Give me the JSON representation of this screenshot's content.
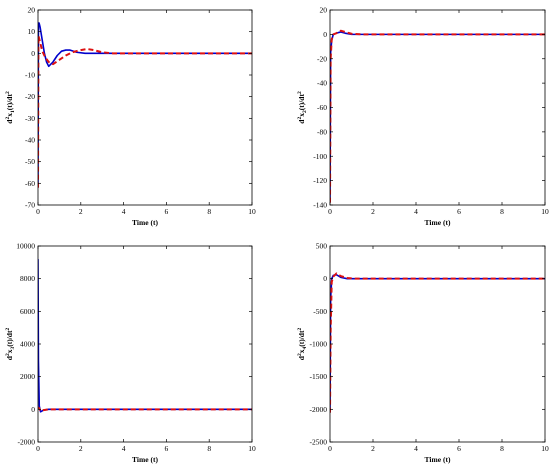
{
  "chart_data": [
    {
      "type": "line",
      "xlabel": "Time (t)",
      "ylabel_parts": {
        "main": "d",
        "sup1": "2",
        "mid": "x",
        "sub": "1",
        "end": "(t)/dt",
        "sup2": "2"
      },
      "xlim": [
        0,
        10
      ],
      "ylim": [
        -70,
        20
      ],
      "xticks": [
        0,
        2,
        4,
        6,
        8,
        10
      ],
      "yticks": [
        20,
        10,
        0,
        -10,
        -20,
        -30,
        -40,
        -50,
        -60,
        -70
      ],
      "grid": false,
      "series": [
        {
          "style": "solid",
          "color": "#0000cc",
          "x": [
            0,
            0.02,
            0.05,
            0.1,
            0.2,
            0.3,
            0.4,
            0.5,
            0.7,
            0.9,
            1.1,
            1.3,
            1.5,
            1.8,
            2.2,
            2.6,
            3,
            4,
            5,
            6,
            7,
            8,
            9,
            10
          ],
          "y": [
            -62,
            14,
            14,
            12,
            6,
            0,
            -4,
            -6,
            -4,
            -1,
            1,
            1.5,
            1.5,
            0.5,
            0,
            0,
            0,
            0,
            0,
            0,
            0,
            0,
            0,
            0
          ]
        },
        {
          "style": "dashed",
          "color": "#dd1111",
          "x": [
            0,
            0.02,
            0.05,
            0.1,
            0.2,
            0.35,
            0.5,
            0.7,
            1,
            1.3,
            1.6,
            2,
            2.3,
            2.6,
            3,
            3.5,
            4,
            5,
            6,
            7,
            8,
            9,
            10
          ],
          "y": [
            -62,
            8,
            7,
            5,
            1,
            -2,
            -4,
            -5,
            -3,
            -1,
            0.5,
            1.5,
            2,
            1.5,
            0.5,
            0,
            0,
            0,
            0,
            0,
            0,
            0,
            0
          ]
        }
      ]
    },
    {
      "type": "line",
      "xlabel": "Time (t)",
      "ylabel_parts": {
        "main": "d",
        "sup1": "2",
        "mid": "x",
        "sub": "2",
        "end": "(t)/dt",
        "sup2": "2"
      },
      "xlim": [
        0,
        10
      ],
      "ylim": [
        -140,
        20
      ],
      "xticks": [
        0,
        2,
        4,
        6,
        8,
        10
      ],
      "yticks": [
        20,
        0,
        -20,
        -40,
        -60,
        -80,
        -100,
        -120,
        -140
      ],
      "grid": false,
      "series": [
        {
          "style": "solid",
          "color": "#0000cc",
          "x": [
            0,
            0.03,
            0.08,
            0.15,
            0.3,
            0.5,
            0.7,
            1,
            1.5,
            2,
            3,
            4,
            5,
            6,
            7,
            8,
            9,
            10
          ],
          "y": [
            -138,
            -15,
            -5,
            0,
            1,
            2,
            1,
            0,
            0,
            0,
            0,
            0,
            0,
            0,
            0,
            0,
            0,
            0
          ]
        },
        {
          "style": "dashed",
          "color": "#dd1111",
          "x": [
            0,
            0.03,
            0.08,
            0.15,
            0.3,
            0.5,
            0.7,
            1,
            1.5,
            2,
            3,
            4,
            5,
            6,
            7,
            8,
            9,
            10
          ],
          "y": [
            -138,
            -20,
            -4,
            0,
            1,
            3,
            2,
            0.5,
            0,
            0,
            0,
            0,
            0,
            0,
            0,
            0,
            0,
            0
          ]
        }
      ]
    },
    {
      "type": "line",
      "xlabel": "Time (t)",
      "ylabel_parts": {
        "main": "d",
        "sup1": "2",
        "mid": "x",
        "sub": "3",
        "end": "(t)/dt",
        "sup2": "2"
      },
      "xlim": [
        0,
        10
      ],
      "ylim": [
        -2000,
        10000
      ],
      "xticks": [
        0,
        2,
        4,
        6,
        8,
        10
      ],
      "yticks": [
        10000,
        8000,
        6000,
        4000,
        2000,
        0,
        -2000
      ],
      "grid": false,
      "series": [
        {
          "style": "solid",
          "color": "#0000cc",
          "x": [
            0,
            0.02,
            0.06,
            0.12,
            0.25,
            0.5,
            1,
            2,
            3,
            4,
            5,
            6,
            7,
            8,
            9,
            10
          ],
          "y": [
            9200,
            3000,
            200,
            -150,
            -50,
            0,
            0,
            0,
            0,
            0,
            0,
            0,
            0,
            0,
            0,
            0
          ]
        },
        {
          "style": "dashed",
          "color": "#dd1111",
          "x": [
            0,
            0.02,
            0.06,
            0.12,
            0.25,
            0.5,
            1,
            2,
            3,
            4,
            5,
            6,
            7,
            8,
            9,
            10
          ],
          "y": [
            0,
            100,
            50,
            -100,
            -50,
            0,
            0,
            0,
            0,
            0,
            0,
            0,
            0,
            0,
            0,
            0
          ]
        }
      ]
    },
    {
      "type": "line",
      "xlabel": "Time (t)",
      "ylabel_parts": {
        "main": "d",
        "sup1": "2",
        "mid": "x",
        "sub": "4",
        "end": "(t)/dt",
        "sup2": "2"
      },
      "xlim": [
        0,
        10
      ],
      "ylim": [
        -2500,
        500
      ],
      "xticks": [
        0,
        2,
        4,
        6,
        8,
        10
      ],
      "yticks": [
        500,
        0,
        -500,
        -1000,
        -1500,
        -2000,
        -2500
      ],
      "grid": false,
      "series": [
        {
          "style": "solid",
          "color": "#0000cc",
          "x": [
            0,
            0.03,
            0.08,
            0.15,
            0.3,
            0.5,
            0.8,
            1.2,
            2,
            3,
            4,
            5,
            6,
            7,
            8,
            9,
            10
          ],
          "y": [
            -2050,
            -300,
            0,
            50,
            60,
            20,
            0,
            0,
            0,
            0,
            0,
            0,
            0,
            0,
            0,
            0,
            0
          ]
        },
        {
          "style": "dashed",
          "color": "#dd1111",
          "x": [
            0,
            0.03,
            0.08,
            0.15,
            0.3,
            0.5,
            0.8,
            1.2,
            2,
            3,
            4,
            5,
            6,
            7,
            8,
            9,
            10
          ],
          "y": [
            -2050,
            -800,
            -50,
            30,
            80,
            40,
            10,
            0,
            0,
            0,
            0,
            0,
            0,
            0,
            0,
            0,
            0
          ]
        }
      ]
    }
  ]
}
